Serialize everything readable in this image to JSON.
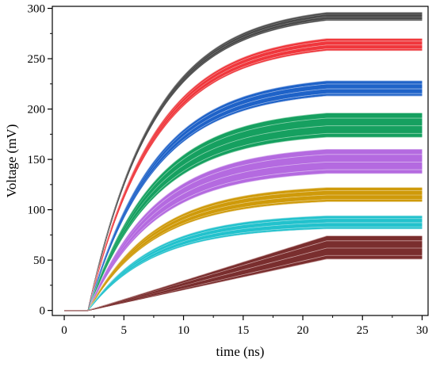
{
  "chart_data": {
    "type": "line",
    "title": "",
    "xlabel": "time (ns)",
    "ylabel": "Voltage (mV)",
    "xlim": [
      -1,
      30.5
    ],
    "ylim": [
      -5,
      302
    ],
    "xticks": [
      0,
      5,
      10,
      15,
      20,
      25,
      30
    ],
    "yticks": [
      0,
      50,
      100,
      150,
      200,
      250,
      300
    ],
    "grid": false,
    "legend": "none",
    "onset_time": 2,
    "plateau_time": 22,
    "end_time": 30,
    "series": [
      {
        "color": "#4a4a4a",
        "shape": "exp",
        "final_min": 288,
        "final_max": 296,
        "line_count": 20,
        "outline": "#9a9a9a"
      },
      {
        "color": "#f0373c",
        "shape": "exp",
        "final_min": 258,
        "final_max": 270,
        "line_count": 20,
        "outline": "#f2b0b0"
      },
      {
        "color": "#1f63c8",
        "shape": "exp",
        "final_min": 213,
        "final_max": 228,
        "line_count": 20,
        "outline": "#9fb9e6"
      },
      {
        "color": "#16a060",
        "shape": "exp",
        "final_min": 172,
        "final_max": 196,
        "line_count": 20,
        "outline": "#8fd4b0"
      },
      {
        "color": "#b46ae0",
        "shape": "exp",
        "final_min": 136,
        "final_max": 160,
        "line_count": 20,
        "outline": "#d8b4ee"
      },
      {
        "color": "#cf9a0a",
        "shape": "exp",
        "final_min": 108,
        "final_max": 122,
        "line_count": 20,
        "outline": "#e6cd88"
      },
      {
        "color": "#22c2cd",
        "shape": "exp",
        "final_min": 81,
        "final_max": 94,
        "line_count": 20,
        "outline": "#9fe0e5"
      },
      {
        "color": "#7a2f2f",
        "shape": "linear",
        "final_min": 51,
        "final_max": 74,
        "line_count": 20,
        "outline": "#c9a0a0"
      }
    ]
  }
}
